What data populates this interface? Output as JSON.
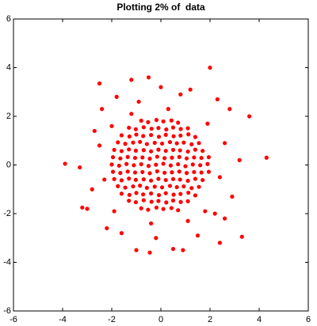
{
  "chart_data": {
    "type": "scatter",
    "title": "Plotting 2% of  data",
    "color": "#ff0000",
    "xlim": [
      -6,
      6
    ],
    "ylim": [
      -6,
      6
    ],
    "xticks": [
      -6,
      -4,
      -2,
      0,
      2,
      4,
      6
    ],
    "yticks": [
      -6,
      -4,
      -2,
      0,
      2,
      4,
      6
    ],
    "x": [
      -0.8,
      -0.52,
      -0.18,
      0.1,
      0.43,
      0.7,
      -1.3,
      -1.02,
      -0.7,
      -0.38,
      -0.1,
      0.22,
      0.5,
      0.81,
      1.1,
      -1.6,
      -1.28,
      -1.0,
      -0.72,
      -0.4,
      -0.08,
      0.2,
      0.52,
      0.8,
      1.12,
      1.4,
      -1.75,
      -1.45,
      -1.13,
      -0.85,
      -0.57,
      -0.25,
      0.05,
      0.37,
      0.65,
      0.93,
      1.25,
      1.55,
      -1.9,
      -1.6,
      -1.3,
      -1.02,
      -0.7,
      -0.4,
      -0.1,
      0.2,
      0.5,
      0.78,
      1.1,
      1.4,
      1.7,
      -1.95,
      -1.65,
      -1.35,
      -1.05,
      -0.75,
      -0.45,
      -0.15,
      0.15,
      0.45,
      0.75,
      1.05,
      1.35,
      1.65,
      1.95,
      -2.0,
      -1.7,
      -1.4,
      -1.1,
      -0.8,
      -0.5,
      -0.2,
      0.1,
      0.4,
      0.7,
      1.0,
      1.3,
      1.6,
      1.9,
      -1.95,
      -1.65,
      -1.35,
      -1.05,
      -0.75,
      -0.45,
      -0.15,
      0.15,
      0.45,
      0.75,
      1.05,
      1.35,
      1.65,
      1.95,
      -1.9,
      -1.6,
      -1.3,
      -1.02,
      -0.7,
      -0.4,
      -0.1,
      0.2,
      0.5,
      0.78,
      1.1,
      1.4,
      1.7,
      -1.75,
      -1.45,
      -1.13,
      -0.85,
      -0.57,
      -0.25,
      0.05,
      0.37,
      0.65,
      0.93,
      1.25,
      1.55,
      -1.6,
      -1.28,
      -1.0,
      -0.72,
      -0.4,
      -0.08,
      0.2,
      0.52,
      0.8,
      1.12,
      1.4,
      -1.3,
      -1.02,
      -0.7,
      -0.38,
      -0.1,
      0.22,
      0.5,
      0.81,
      1.1,
      -0.8,
      -0.52,
      -0.18,
      0.1,
      0.43,
      0.7,
      4.3,
      -3.9,
      -3.2,
      -3.0,
      2.0,
      -0.5,
      -1.2,
      -2.5,
      3.3,
      3.6,
      -1.0,
      0.5,
      -0.45,
      2.4,
      -2.7,
      -2.4,
      2.8,
      -3.3,
      3.2,
      2.9,
      -2.8,
      1.2,
      0.0,
      -1.8,
      2.3,
      -2.2,
      1.5,
      -0.2,
      0.9,
      2.6,
      -2.5,
      2.6,
      -1.6,
      0.8,
      -0.9,
      2.2,
      -2.3,
      2.4,
      -2.0,
      1.9,
      -1.9,
      1.8,
      0.3,
      -0.4,
      -1.2,
      1.1
    ],
    "values": [
      1.82,
      1.76,
      1.85,
      1.79,
      1.83,
      1.74,
      1.53,
      1.47,
      1.55,
      1.49,
      1.52,
      1.46,
      1.54,
      1.48,
      1.51,
      1.22,
      1.17,
      1.25,
      1.19,
      1.23,
      1.16,
      1.24,
      1.18,
      1.21,
      1.26,
      1.15,
      0.93,
      0.87,
      0.92,
      0.95,
      0.86,
      0.91,
      0.88,
      0.94,
      0.89,
      0.92,
      0.85,
      0.9,
      0.62,
      0.57,
      0.64,
      0.59,
      0.61,
      0.56,
      0.63,
      0.58,
      0.62,
      0.6,
      0.55,
      0.63,
      0.58,
      0.32,
      0.27,
      0.33,
      0.29,
      0.31,
      0.26,
      0.34,
      0.28,
      0.3,
      0.33,
      0.27,
      0.31,
      0.29,
      0.32,
      0.02,
      -0.03,
      0.04,
      -0.01,
      0.03,
      -0.04,
      0.01,
      0.05,
      -0.02,
      0.03,
      -0.05,
      0.02,
      -0.01,
      0.04,
      -0.28,
      -0.33,
      -0.27,
      -0.31,
      -0.29,
      -0.34,
      -0.26,
      -0.32,
      -0.3,
      -0.27,
      -0.33,
      -0.29,
      -0.31,
      -0.28,
      -0.58,
      -0.63,
      -0.56,
      -0.61,
      -0.59,
      -0.64,
      -0.57,
      -0.62,
      -0.58,
      -0.6,
      -0.65,
      -0.57,
      -0.62,
      -0.87,
      -0.93,
      -0.88,
      -0.85,
      -0.94,
      -0.89,
      -0.92,
      -0.86,
      -0.91,
      -0.88,
      -0.95,
      -0.9,
      -1.18,
      -1.23,
      -1.15,
      -1.21,
      -1.17,
      -1.24,
      -1.16,
      -1.22,
      -1.19,
      -1.14,
      -1.25,
      -1.47,
      -1.53,
      -1.45,
      -1.51,
      -1.48,
      -1.54,
      -1.46,
      -1.52,
      -1.49,
      -1.78,
      -1.84,
      -1.75,
      -1.81,
      -1.77,
      -1.86,
      0.3,
      0.05,
      -1.75,
      -1.8,
      4.0,
      3.6,
      3.5,
      3.35,
      -2.95,
      2.0,
      -3.5,
      -3.45,
      -3.6,
      -3.2,
      1.4,
      2.3,
      2.3,
      -0.1,
      0.2,
      -1.3,
      -1.0,
      3.1,
      3.2,
      2.8,
      2.7,
      -2.6,
      -2.9,
      -3.0,
      -3.5,
      -2.2,
      0.8,
      0.9,
      -2.8,
      2.9,
      2.6,
      -2.0,
      -0.6,
      -0.5,
      1.6,
      1.7,
      -1.9,
      -1.9,
      2.3,
      -2.4,
      2.1,
      -2.3
    ]
  }
}
